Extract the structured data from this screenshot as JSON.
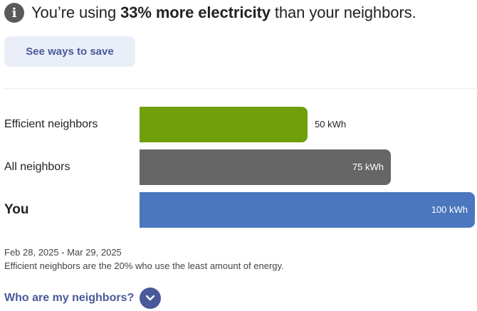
{
  "header": {
    "icon": "info-icon",
    "icon_glyph": "i",
    "headline_prefix": "You’re using ",
    "headline_emphasis": "33% more electricity",
    "headline_suffix": " than your neighbors."
  },
  "actions": {
    "save_label": "See ways to save"
  },
  "chart_data": {
    "type": "bar",
    "orientation": "horizontal",
    "categories": [
      "Efficient neighbors",
      "All neighbors",
      "You"
    ],
    "values": [
      50,
      75,
      100
    ],
    "value_labels": [
      "50 kWh",
      "75 kWh",
      "100 kWh"
    ],
    "unit": "kWh",
    "colors": [
      "#6fa00c",
      "#666666",
      "#4a77bd"
    ],
    "xlim": [
      0,
      100
    ]
  },
  "period": {
    "date_range": "Feb 28, 2025 - Mar 29, 2025"
  },
  "footnote": "Efficient neighbors are the 20% who use the least amount of energy.",
  "neighbors_link": {
    "label": "Who are my neighbors?",
    "icon": "chevron-down-icon"
  }
}
